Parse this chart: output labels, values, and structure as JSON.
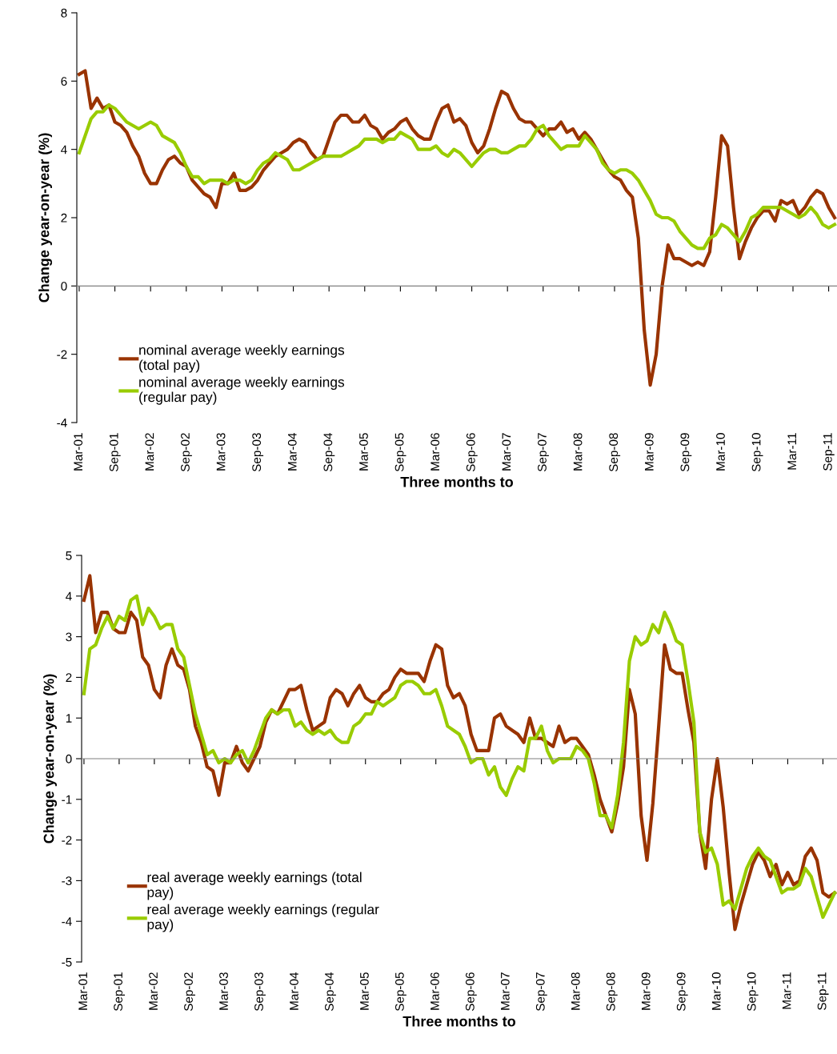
{
  "chart_data": [
    {
      "type": "line",
      "ylabel": "Change year-on-year (%)",
      "xlabel": "Three months to",
      "ylim": [
        -4,
        8
      ],
      "yticks": [
        -4,
        -2,
        0,
        2,
        4,
        6,
        8
      ],
      "legend": "bottom left",
      "marker": "none",
      "line_style": "solid",
      "categories": [
        "Mar-01",
        null,
        null,
        null,
        null,
        null,
        "Sep-01",
        null,
        null,
        null,
        null,
        null,
        "Mar-02",
        null,
        null,
        null,
        null,
        null,
        "Sep-02",
        null,
        null,
        null,
        null,
        null,
        "Mar-03",
        null,
        null,
        null,
        null,
        null,
        "Sep-03",
        null,
        null,
        null,
        null,
        null,
        "Mar-04",
        null,
        null,
        null,
        null,
        null,
        "Sep-04",
        null,
        null,
        null,
        null,
        null,
        "Mar-05",
        null,
        null,
        null,
        null,
        null,
        "Sep-05",
        null,
        null,
        null,
        null,
        null,
        "Mar-06",
        null,
        null,
        null,
        null,
        null,
        "Sep-06",
        null,
        null,
        null,
        null,
        null,
        "Mar-07",
        null,
        null,
        null,
        null,
        null,
        "Sep-07",
        null,
        null,
        null,
        null,
        null,
        "Mar-08",
        null,
        null,
        null,
        null,
        null,
        "Sep-08",
        null,
        null,
        null,
        null,
        null,
        "Mar-09",
        null,
        null,
        null,
        null,
        null,
        "Sep-09",
        null,
        null,
        null,
        null,
        null,
        "Mar-10",
        null,
        null,
        null,
        null,
        null,
        "Sep-10",
        null,
        null,
        null,
        null,
        null,
        "Mar-11",
        null,
        null,
        null,
        null,
        null,
        "Sep-11",
        null
      ],
      "series": [
        {
          "name": "nominal average weekly earnings\n(total pay)",
          "color": "#993300",
          "values": [
            6.2,
            6.3,
            5.2,
            5.5,
            5.2,
            5.3,
            4.8,
            4.7,
            4.5,
            4.1,
            3.8,
            3.3,
            3.0,
            3.0,
            3.4,
            3.7,
            3.8,
            3.6,
            3.5,
            3.1,
            2.9,
            2.7,
            2.6,
            2.3,
            3.0,
            3.0,
            3.3,
            2.8,
            2.8,
            2.9,
            3.1,
            3.4,
            3.6,
            3.8,
            3.9,
            4.0,
            4.2,
            4.3,
            4.2,
            3.9,
            3.7,
            3.8,
            4.3,
            4.8,
            5.0,
            5.0,
            4.8,
            4.8,
            5.0,
            4.7,
            4.6,
            4.3,
            4.5,
            4.6,
            4.8,
            4.9,
            4.6,
            4.4,
            4.3,
            4.3,
            4.8,
            5.2,
            5.3,
            4.8,
            4.9,
            4.7,
            4.2,
            3.9,
            4.1,
            4.6,
            5.2,
            5.7,
            5.6,
            5.2,
            4.9,
            4.8,
            4.8,
            4.6,
            4.4,
            4.6,
            4.6,
            4.8,
            4.5,
            4.6,
            4.3,
            4.5,
            4.3,
            4.0,
            3.7,
            3.4,
            3.2,
            3.1,
            2.8,
            2.6,
            1.4,
            -1.3,
            -2.9,
            -2.0,
            0.0,
            1.2,
            0.8,
            0.8,
            0.7,
            0.6,
            0.7,
            0.6,
            1.0,
            2.6,
            4.4,
            4.1,
            2.3,
            0.8,
            1.3,
            1.7,
            2.0,
            2.2,
            2.2,
            1.9,
            2.5,
            2.4,
            2.5,
            2.1,
            2.3,
            2.6,
            2.8,
            2.7,
            2.3,
            2.0
          ]
        },
        {
          "name": "nominal average weekly earnings\n(regular pay)",
          "color": "#99cc00",
          "values": [
            3.9,
            4.4,
            4.9,
            5.1,
            5.1,
            5.3,
            5.2,
            5.0,
            4.8,
            4.7,
            4.6,
            4.7,
            4.8,
            4.7,
            4.4,
            4.3,
            4.2,
            3.9,
            3.5,
            3.2,
            3.2,
            3.0,
            3.1,
            3.1,
            3.1,
            3.0,
            3.1,
            3.1,
            3.0,
            3.1,
            3.4,
            3.6,
            3.7,
            3.9,
            3.8,
            3.7,
            3.4,
            3.4,
            3.5,
            3.6,
            3.7,
            3.8,
            3.8,
            3.8,
            3.8,
            3.9,
            4.0,
            4.1,
            4.3,
            4.3,
            4.3,
            4.2,
            4.3,
            4.3,
            4.5,
            4.4,
            4.3,
            4.0,
            4.0,
            4.0,
            4.1,
            3.9,
            3.8,
            4.0,
            3.9,
            3.7,
            3.5,
            3.7,
            3.9,
            4.0,
            4.0,
            3.9,
            3.9,
            4.0,
            4.1,
            4.1,
            4.3,
            4.6,
            4.7,
            4.4,
            4.2,
            4.0,
            4.1,
            4.1,
            4.1,
            4.4,
            4.2,
            4.0,
            3.6,
            3.4,
            3.3,
            3.4,
            3.4,
            3.3,
            3.1,
            2.8,
            2.5,
            2.1,
            2.0,
            2.0,
            1.9,
            1.6,
            1.4,
            1.2,
            1.1,
            1.1,
            1.4,
            1.5,
            1.8,
            1.7,
            1.5,
            1.3,
            1.6,
            2.0,
            2.1,
            2.3,
            2.3,
            2.3,
            2.3,
            2.2,
            2.1,
            2.0,
            2.1,
            2.3,
            2.1,
            1.8,
            1.7,
            1.8
          ]
        }
      ]
    },
    {
      "type": "line",
      "ylabel": "Change year-on-year (%)",
      "xlabel": "Three months to",
      "ylim": [
        -5,
        5
      ],
      "yticks": [
        -5,
        -4,
        -3,
        -2,
        -1,
        0,
        1,
        2,
        3,
        4,
        5
      ],
      "legend": "bottom left",
      "marker": "none",
      "line_style": "solid",
      "categories": [
        "Mar-01",
        null,
        null,
        null,
        null,
        null,
        "Sep-01",
        null,
        null,
        null,
        null,
        null,
        "Mar-02",
        null,
        null,
        null,
        null,
        null,
        "Sep-02",
        null,
        null,
        null,
        null,
        null,
        "Mar-03",
        null,
        null,
        null,
        null,
        null,
        "Sep-03",
        null,
        null,
        null,
        null,
        null,
        "Mar-04",
        null,
        null,
        null,
        null,
        null,
        "Sep-04",
        null,
        null,
        null,
        null,
        null,
        "Mar-05",
        null,
        null,
        null,
        null,
        null,
        "Sep-05",
        null,
        null,
        null,
        null,
        null,
        "Mar-06",
        null,
        null,
        null,
        null,
        null,
        "Sep-06",
        null,
        null,
        null,
        null,
        null,
        "Mar-07",
        null,
        null,
        null,
        null,
        null,
        "Sep-07",
        null,
        null,
        null,
        null,
        null,
        "Mar-08",
        null,
        null,
        null,
        null,
        null,
        "Sep-08",
        null,
        null,
        null,
        null,
        null,
        "Mar-09",
        null,
        null,
        null,
        null,
        null,
        "Sep-09",
        null,
        null,
        null,
        null,
        null,
        "Mar-10",
        null,
        null,
        null,
        null,
        null,
        "Sep-10",
        null,
        null,
        null,
        null,
        null,
        "Mar-11",
        null,
        null,
        null,
        null,
        null,
        "Sep-11",
        null,
        null
      ],
      "series": [
        {
          "name": "real average weekly earnings (total\npay)",
          "color": "#993300",
          "values": [
            3.9,
            4.5,
            3.1,
            3.6,
            3.6,
            3.2,
            3.1,
            3.1,
            3.6,
            3.4,
            2.5,
            2.3,
            1.7,
            1.5,
            2.3,
            2.7,
            2.3,
            2.2,
            1.7,
            0.8,
            0.4,
            -0.2,
            -0.3,
            -0.9,
            -0.1,
            -0.1,
            0.3,
            -0.1,
            -0.3,
            0.0,
            0.3,
            0.9,
            1.2,
            1.1,
            1.4,
            1.7,
            1.7,
            1.8,
            1.2,
            0.7,
            0.8,
            0.9,
            1.5,
            1.7,
            1.6,
            1.3,
            1.6,
            1.8,
            1.5,
            1.4,
            1.4,
            1.6,
            1.7,
            2.0,
            2.2,
            2.1,
            2.1,
            2.1,
            1.9,
            2.4,
            2.8,
            2.7,
            1.8,
            1.5,
            1.6,
            1.3,
            0.6,
            0.2,
            0.2,
            0.2,
            1.0,
            1.1,
            0.8,
            0.7,
            0.6,
            0.4,
            1.0,
            0.5,
            0.5,
            0.4,
            0.3,
            0.8,
            0.4,
            0.5,
            0.5,
            0.3,
            0.1,
            -0.4,
            -1.0,
            -1.4,
            -1.8,
            -1.1,
            -0.2,
            1.7,
            1.1,
            -1.4,
            -2.5,
            -1.1,
            0.8,
            2.8,
            2.2,
            2.1,
            2.1,
            1.2,
            0.4,
            -1.8,
            -2.7,
            -1.0,
            0.0,
            -1.2,
            -2.8,
            -4.2,
            -3.6,
            -3.1,
            -2.6,
            -2.3,
            -2.5,
            -2.9,
            -2.6,
            -3.1,
            -2.8,
            -3.1,
            -3.0,
            -2.4,
            -2.2,
            -2.5,
            -3.3,
            -3.4,
            -3.3
          ]
        },
        {
          "name": "real average weekly earnings (regular\npay)",
          "color": "#99cc00",
          "values": [
            1.6,
            2.7,
            2.8,
            3.2,
            3.5,
            3.2,
            3.5,
            3.4,
            3.9,
            4.0,
            3.3,
            3.7,
            3.5,
            3.2,
            3.3,
            3.3,
            2.7,
            2.5,
            1.8,
            1.1,
            0.6,
            0.1,
            0.2,
            -0.1,
            0.0,
            -0.1,
            0.1,
            0.2,
            -0.1,
            0.2,
            0.6,
            1.0,
            1.2,
            1.1,
            1.2,
            1.2,
            0.8,
            0.9,
            0.7,
            0.6,
            0.7,
            0.6,
            0.7,
            0.5,
            0.4,
            0.4,
            0.8,
            0.9,
            1.1,
            1.1,
            1.4,
            1.3,
            1.4,
            1.5,
            1.8,
            1.9,
            1.9,
            1.8,
            1.6,
            1.6,
            1.7,
            1.3,
            0.8,
            0.7,
            0.6,
            0.3,
            -0.1,
            0.0,
            0.0,
            -0.4,
            -0.2,
            -0.7,
            -0.9,
            -0.5,
            -0.2,
            -0.3,
            0.5,
            0.5,
            0.8,
            0.2,
            -0.1,
            0.0,
            0.0,
            0.0,
            0.3,
            0.2,
            0.0,
            -0.6,
            -1.4,
            -1.4,
            -1.7,
            -0.9,
            0.4,
            2.4,
            3.0,
            2.8,
            2.9,
            3.3,
            3.1,
            3.6,
            3.3,
            2.9,
            2.8,
            1.9,
            0.9,
            -1.8,
            -2.3,
            -2.2,
            -2.6,
            -3.6,
            -3.5,
            -3.7,
            -3.2,
            -2.7,
            -2.4,
            -2.2,
            -2.4,
            -2.5,
            -2.9,
            -3.3,
            -3.2,
            -3.2,
            -3.1,
            -2.7,
            -2.9,
            -3.4,
            -3.9,
            -3.6,
            -3.3
          ]
        }
      ]
    }
  ]
}
